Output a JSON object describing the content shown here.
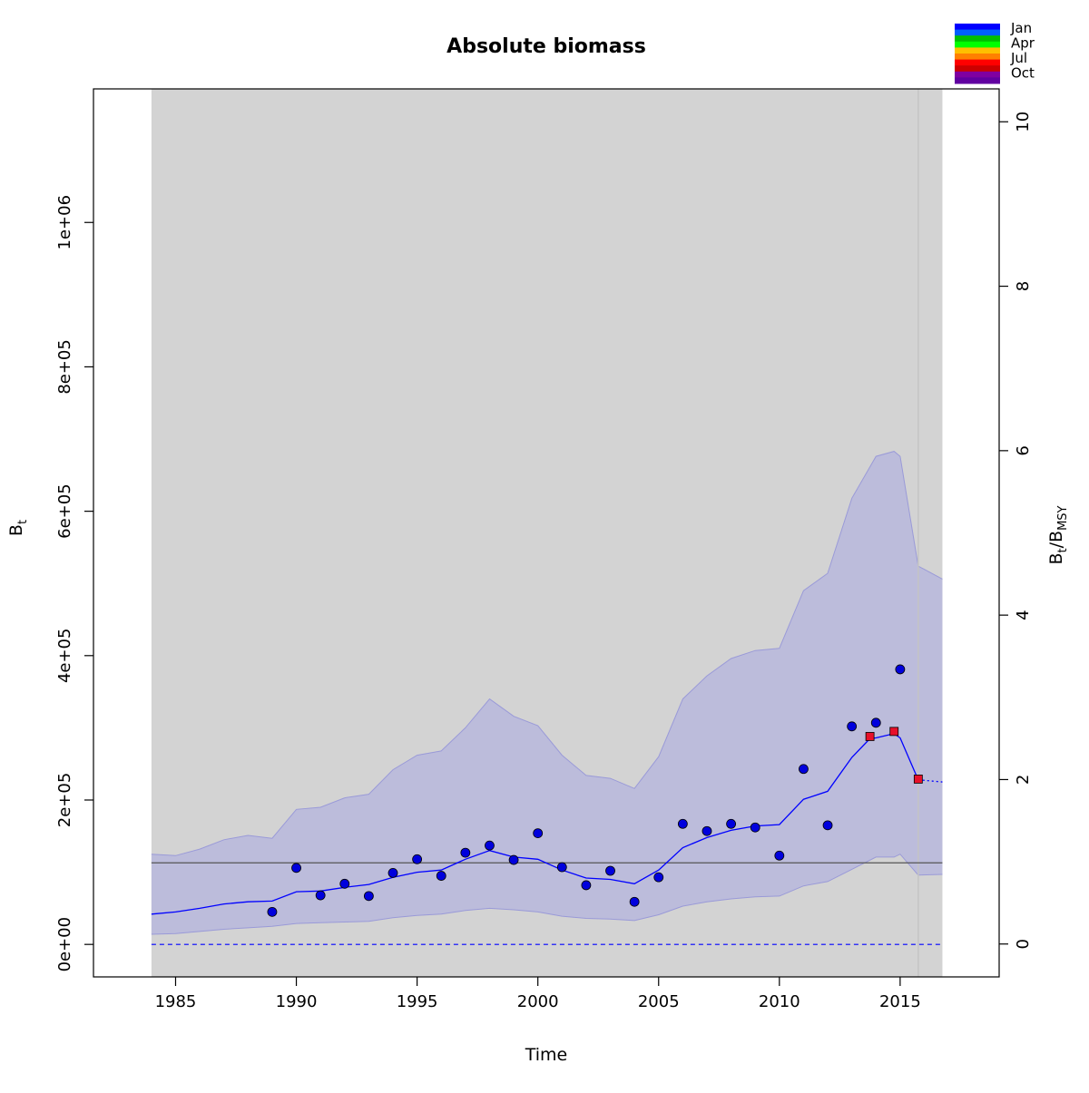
{
  "chart_data": {
    "type": "line",
    "title": "Absolute biomass",
    "xlabel": "Time",
    "ylabel": "B",
    "ylabel_sub": "t",
    "y2label_main_1": "B",
    "y2label_sub_1": "t",
    "y2label_sep": "/",
    "y2label_main_2": "B",
    "y2label_sub_2": "MSY",
    "xlim": [
      1981.6,
      2019.1
    ],
    "ylim": [
      -45000,
      1185000
    ],
    "y2lim": [
      -0.4,
      10.4
    ],
    "xticks": [
      1985,
      1990,
      1995,
      2000,
      2005,
      2010,
      2015
    ],
    "xtick_labels": [
      "1985",
      "1990",
      "1995",
      "2000",
      "2005",
      "2010",
      "2015"
    ],
    "yticks": [
      0,
      200000,
      400000,
      600000,
      800000,
      1000000
    ],
    "ytick_labels": [
      "0e+00",
      "2e+05",
      "4e+05",
      "6e+05",
      "8e+05",
      "1e+06"
    ],
    "y2ticks": [
      0,
      2,
      4,
      6,
      8,
      10
    ],
    "y2tick_labels": [
      "0",
      "2",
      "4",
      "6",
      "8",
      "10"
    ],
    "bmsy_ratio": 113000,
    "shaded_region": [
      1984,
      2016.75
    ],
    "vline_x": 2015.75,
    "colors": {
      "background": "#d3d3d3",
      "ci_fill": "#bcbcdb",
      "ci_edge": "#9a9ad8",
      "line": "#0000ff",
      "points": "#0000dd",
      "points_proj": "#e8102a",
      "bmsy_line": "#555555",
      "vline": "#c4c4c4"
    },
    "series": {
      "estimate": [
        [
          1984,
          42000
        ],
        [
          1985,
          45000
        ],
        [
          1986,
          50000
        ],
        [
          1987,
          56000
        ],
        [
          1988,
          59000
        ],
        [
          1989,
          60000
        ],
        [
          1990,
          73000
        ],
        [
          1991,
          74000
        ],
        [
          1992,
          79000
        ],
        [
          1993,
          83000
        ],
        [
          1994,
          93000
        ],
        [
          1995,
          100000
        ],
        [
          1996,
          103000
        ],
        [
          1997,
          118000
        ],
        [
          1998,
          130000
        ],
        [
          1999,
          121000
        ],
        [
          2000,
          118000
        ],
        [
          2001,
          103000
        ],
        [
          2002,
          92000
        ],
        [
          2003,
          90000
        ],
        [
          2004,
          84000
        ],
        [
          2005,
          103000
        ],
        [
          2006,
          134000
        ],
        [
          2007,
          148000
        ],
        [
          2008,
          158000
        ],
        [
          2009,
          164000
        ],
        [
          2010,
          166000
        ],
        [
          2011,
          201000
        ],
        [
          2012,
          212000
        ],
        [
          2013,
          259000
        ],
        [
          2013.75,
          285000
        ],
        [
          2014,
          286000
        ],
        [
          2014.75,
          292000
        ],
        [
          2015,
          286000
        ],
        [
          2015.75,
          228000
        ]
      ],
      "projection": [
        [
          2015.75,
          228000
        ],
        [
          2016.75,
          225000
        ]
      ],
      "ci_upper": [
        [
          1984,
          125000
        ],
        [
          1985,
          123000
        ],
        [
          1986,
          132000
        ],
        [
          1987,
          145000
        ],
        [
          1988,
          151000
        ],
        [
          1989,
          147000
        ],
        [
          1990,
          187000
        ],
        [
          1991,
          190000
        ],
        [
          1992,
          203000
        ],
        [
          1993,
          208000
        ],
        [
          1994,
          242000
        ],
        [
          1995,
          262000
        ],
        [
          1996,
          268000
        ],
        [
          1997,
          300000
        ],
        [
          1998,
          340000
        ],
        [
          1999,
          316000
        ],
        [
          2000,
          303000
        ],
        [
          2001,
          262000
        ],
        [
          2002,
          234000
        ],
        [
          2003,
          230000
        ],
        [
          2004,
          216000
        ],
        [
          2005,
          260000
        ],
        [
          2006,
          340000
        ],
        [
          2007,
          372000
        ],
        [
          2008,
          396000
        ],
        [
          2009,
          407000
        ],
        [
          2010,
          410000
        ],
        [
          2011,
          490000
        ],
        [
          2012,
          514000
        ],
        [
          2013,
          618000
        ],
        [
          2014,
          676000
        ],
        [
          2014.75,
          683000
        ],
        [
          2015,
          676000
        ],
        [
          2015.75,
          524000
        ],
        [
          2016.75,
          506000
        ]
      ],
      "ci_lower": [
        [
          1984,
          14000
        ],
        [
          1985,
          15000
        ],
        [
          1986,
          18000
        ],
        [
          1987,
          21000
        ],
        [
          1988,
          23000
        ],
        [
          1989,
          25000
        ],
        [
          1990,
          29000
        ],
        [
          1991,
          30000
        ],
        [
          1992,
          31000
        ],
        [
          1993,
          32000
        ],
        [
          1994,
          37000
        ],
        [
          1995,
          40000
        ],
        [
          1996,
          42000
        ],
        [
          1997,
          47000
        ],
        [
          1998,
          50000
        ],
        [
          1999,
          48000
        ],
        [
          2000,
          45000
        ],
        [
          2001,
          39000
        ],
        [
          2002,
          36000
        ],
        [
          2003,
          35000
        ],
        [
          2004,
          33000
        ],
        [
          2005,
          41000
        ],
        [
          2006,
          53000
        ],
        [
          2007,
          59000
        ],
        [
          2008,
          63000
        ],
        [
          2009,
          66000
        ],
        [
          2010,
          67000
        ],
        [
          2011,
          81000
        ],
        [
          2012,
          87000
        ],
        [
          2013,
          104000
        ],
        [
          2014,
          121000
        ],
        [
          2014.75,
          121000
        ],
        [
          2015,
          125000
        ],
        [
          2015.75,
          96000
        ],
        [
          2016.75,
          97000
        ]
      ],
      "index_points": [
        [
          1989,
          45000
        ],
        [
          1990,
          106000
        ],
        [
          1991,
          68000
        ],
        [
          1992,
          84000
        ],
        [
          1993,
          67000
        ],
        [
          1994,
          99000
        ],
        [
          1995,
          118000
        ],
        [
          1996,
          95000
        ],
        [
          1997,
          127000
        ],
        [
          1998,
          137000
        ],
        [
          1999,
          117000
        ],
        [
          2000,
          154000
        ],
        [
          2001,
          107000
        ],
        [
          2002,
          82000
        ],
        [
          2003,
          102000
        ],
        [
          2004,
          59000
        ],
        [
          2005,
          93000
        ],
        [
          2006,
          167000
        ],
        [
          2007,
          157000
        ],
        [
          2008,
          167000
        ],
        [
          2009,
          162000
        ],
        [
          2010,
          123000
        ],
        [
          2011,
          243000
        ],
        [
          2012,
          165000
        ],
        [
          2013,
          302000
        ],
        [
          2014,
          307000
        ],
        [
          2015,
          381000
        ]
      ],
      "state_points": [
        [
          2013.75,
          288000
        ],
        [
          2014.75,
          295000
        ],
        [
          2015.75,
          229000
        ]
      ],
      "ratio_line": [
        [
          1984,
          0
        ],
        [
          2016.75,
          0
        ]
      ]
    },
    "legend": {
      "position": "top-right",
      "labels": [
        "Jan",
        "Apr",
        "Jul",
        "Oct"
      ],
      "colors": [
        "#0000ff",
        "#005fff",
        "#00bf00",
        "#00ff00",
        "#ffbf00",
        "#ff8000",
        "#ff0000",
        "#cc0000",
        "#8000a0",
        "#6000a0"
      ]
    }
  }
}
